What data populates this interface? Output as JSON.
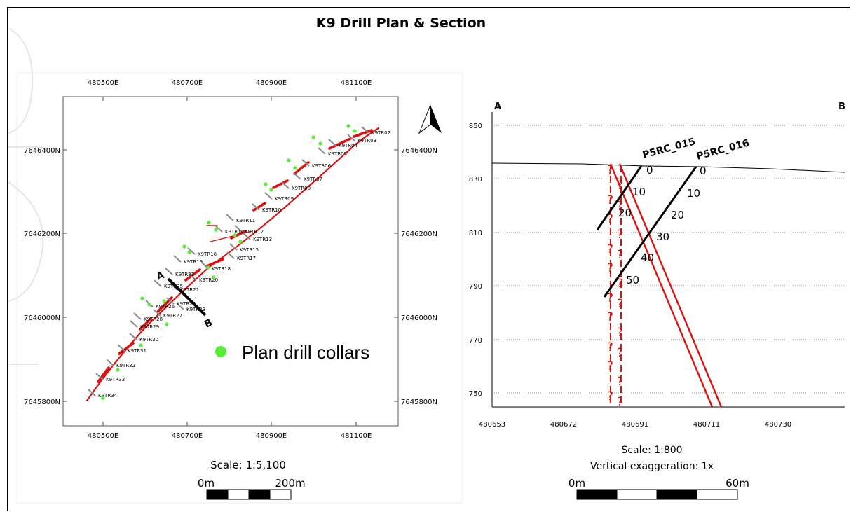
{
  "title": "K9 Drill Plan & Section",
  "plan": {
    "x_ticks": [
      "480500E",
      "480700E",
      "480900E",
      "481100E"
    ],
    "y_ticks": [
      "7646400N",
      "7646200N",
      "7646000N",
      "7645800N"
    ],
    "trenches": [
      "K9TR02",
      "K9TR03",
      "K9TR04",
      "K9TR05",
      "K9TR06",
      "K9TR07",
      "K9TR08",
      "K9TR09",
      "K9TR10",
      "K9TR11",
      "K9TR12",
      "K9TR13",
      "K9TR14",
      "K9TR15",
      "K9TR16",
      "K9TR17",
      "K9TR18",
      "K9TR19",
      "K9TR20",
      "K9TR21",
      "K9TR22",
      "K9TR23",
      "K9TR24",
      "K9TR25",
      "K9TR26",
      "K9TR27",
      "K9TR28",
      "K9TR29",
      "K9TR30",
      "K9TR31",
      "K9TR32",
      "K9TR33",
      "K9TR34"
    ],
    "section_line": {
      "start": "A",
      "end": "B"
    },
    "legend": "Plan drill collars",
    "scale": "Scale: 1:5,100",
    "scalebar": {
      "start": "0m",
      "end": "200m"
    },
    "colors": {
      "trend": "#e01010",
      "collars": "#55ee33",
      "trench": "#8a8a8a"
    }
  },
  "section": {
    "end_left": "A",
    "end_right": "B",
    "x_ticks": [
      "480653",
      "480672",
      "480691",
      "480711",
      "480730"
    ],
    "y_ticks": [
      "850",
      "830",
      "810",
      "790",
      "770",
      "750"
    ],
    "holes": [
      {
        "name": "P5RC_015",
        "depths": [
          "0",
          "10",
          "20"
        ]
      },
      {
        "name": "P5RC_016",
        "depths": [
          "0",
          "10",
          "20",
          "30",
          "40",
          "50"
        ]
      }
    ],
    "unknown_marker": "?",
    "scale": "Scale: 1:800",
    "exaggeration": "Vertical exaggeration: 1x",
    "scalebar": {
      "start": "0m",
      "end": "60m"
    },
    "colors": {
      "lode": "#e01010",
      "hole": "#000000"
    }
  }
}
